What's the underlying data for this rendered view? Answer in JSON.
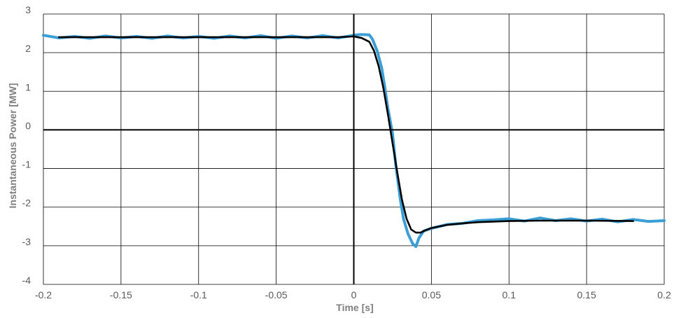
{
  "chart_data": {
    "type": "line",
    "title": "",
    "xlabel": "Time [s]",
    "ylabel": "Instantaneous Power [MW]",
    "xlim": [
      -0.2,
      0.2
    ],
    "ylim": [
      -4,
      3
    ],
    "xticks": [
      -0.2,
      -0.15,
      -0.1,
      -0.05,
      0,
      0.05,
      0.1,
      0.15,
      0.2
    ],
    "xtick_labels": [
      "-0.2",
      "-0.15",
      "-0.1",
      "-0.05",
      "0",
      "0.05",
      "0.1",
      "0.15",
      "0.2"
    ],
    "yticks": [
      -4,
      -3,
      -2,
      -1,
      0,
      1,
      2,
      3
    ],
    "ytick_labels": [
      "-4",
      "-3",
      "-2",
      "-1",
      "0",
      "1",
      "2",
      "3"
    ],
    "grid": true,
    "legend": "none",
    "colors": {
      "measured": "#3a9fd6",
      "model": "#000000",
      "grid": "#000000"
    },
    "series": [
      {
        "color": "#3a9fd6",
        "x": [
          -0.2,
          -0.19,
          -0.18,
          -0.17,
          -0.16,
          -0.15,
          -0.14,
          -0.13,
          -0.12,
          -0.11,
          -0.1,
          -0.09,
          -0.08,
          -0.07,
          -0.06,
          -0.05,
          -0.04,
          -0.03,
          -0.02,
          -0.01,
          0,
          0.005,
          0.01,
          0.012,
          0.015,
          0.018,
          0.02,
          0.022,
          0.025,
          0.027,
          0.03,
          0.032,
          0.035,
          0.038,
          0.04,
          0.042,
          0.045,
          0.05,
          0.055,
          0.06,
          0.07,
          0.08,
          0.09,
          0.1,
          0.11,
          0.12,
          0.13,
          0.14,
          0.15,
          0.16,
          0.17,
          0.18,
          0.19,
          0.2
        ],
        "y": [
          2.45,
          2.38,
          2.42,
          2.37,
          2.43,
          2.38,
          2.42,
          2.37,
          2.43,
          2.38,
          2.42,
          2.37,
          2.43,
          2.38,
          2.44,
          2.37,
          2.43,
          2.38,
          2.44,
          2.38,
          2.45,
          2.47,
          2.46,
          2.35,
          2.05,
          1.6,
          1.1,
          0.55,
          -0.1,
          -0.9,
          -1.8,
          -2.3,
          -2.7,
          -2.95,
          -3.02,
          -2.8,
          -2.62,
          -2.55,
          -2.5,
          -2.45,
          -2.42,
          -2.35,
          -2.33,
          -2.3,
          -2.36,
          -2.28,
          -2.35,
          -2.3,
          -2.36,
          -2.31,
          -2.38,
          -2.32,
          -2.37,
          -2.35
        ]
      },
      {
        "color": "#000000",
        "x": [
          -0.19,
          -0.15,
          -0.1,
          -0.05,
          -0.01,
          0,
          0.005,
          0.01,
          0.013,
          0.016,
          0.019,
          0.022,
          0.025,
          0.028,
          0.031,
          0.034,
          0.037,
          0.04,
          0.043,
          0.046,
          0.05,
          0.06,
          0.07,
          0.08,
          0.1,
          0.12,
          0.15,
          0.18
        ],
        "y": [
          2.4,
          2.4,
          2.4,
          2.4,
          2.4,
          2.42,
          2.38,
          2.28,
          2.05,
          1.65,
          1.1,
          0.4,
          -0.35,
          -1.1,
          -1.8,
          -2.3,
          -2.58,
          -2.66,
          -2.66,
          -2.6,
          -2.54,
          -2.46,
          -2.42,
          -2.39,
          -2.36,
          -2.35,
          -2.35,
          -2.36
        ]
      }
    ]
  }
}
